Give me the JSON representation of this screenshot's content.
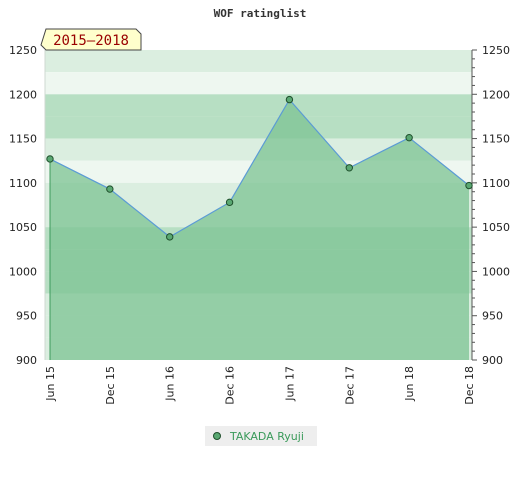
{
  "title": "WOF ratinglist",
  "period_badge": "2015–2018",
  "colors": {
    "area_fill": "#7cc393",
    "line": "#5b9bd5",
    "marker_fill": "#5aa872",
    "marker_stroke": "#1f4f2c",
    "band_light": "#eef7f0",
    "band_mid": "#dbeee0",
    "band_dark": "#b7dfc3",
    "badge_bg": "#ffffcc",
    "badge_text": "#990000"
  },
  "chart_data": {
    "type": "area",
    "title": "WOF ratinglist",
    "categories": [
      "Jun 15",
      "Dec 15",
      "Jun 16",
      "Dec 16",
      "Jun 17",
      "Dec 17",
      "Jun 18",
      "Dec 18"
    ],
    "series": [
      {
        "name": "TAKADA Ryuji",
        "values": [
          1127,
          1093,
          1039,
          1078,
          1194,
          1117,
          1151,
          1097
        ]
      }
    ],
    "ylim": [
      900,
      1250
    ],
    "yticks": [
      900,
      950,
      1000,
      1050,
      1100,
      1150,
      1200,
      1250
    ],
    "grid": "horizontal bands",
    "legend": "bottom-center",
    "axes": "y-axis on both left and right"
  }
}
